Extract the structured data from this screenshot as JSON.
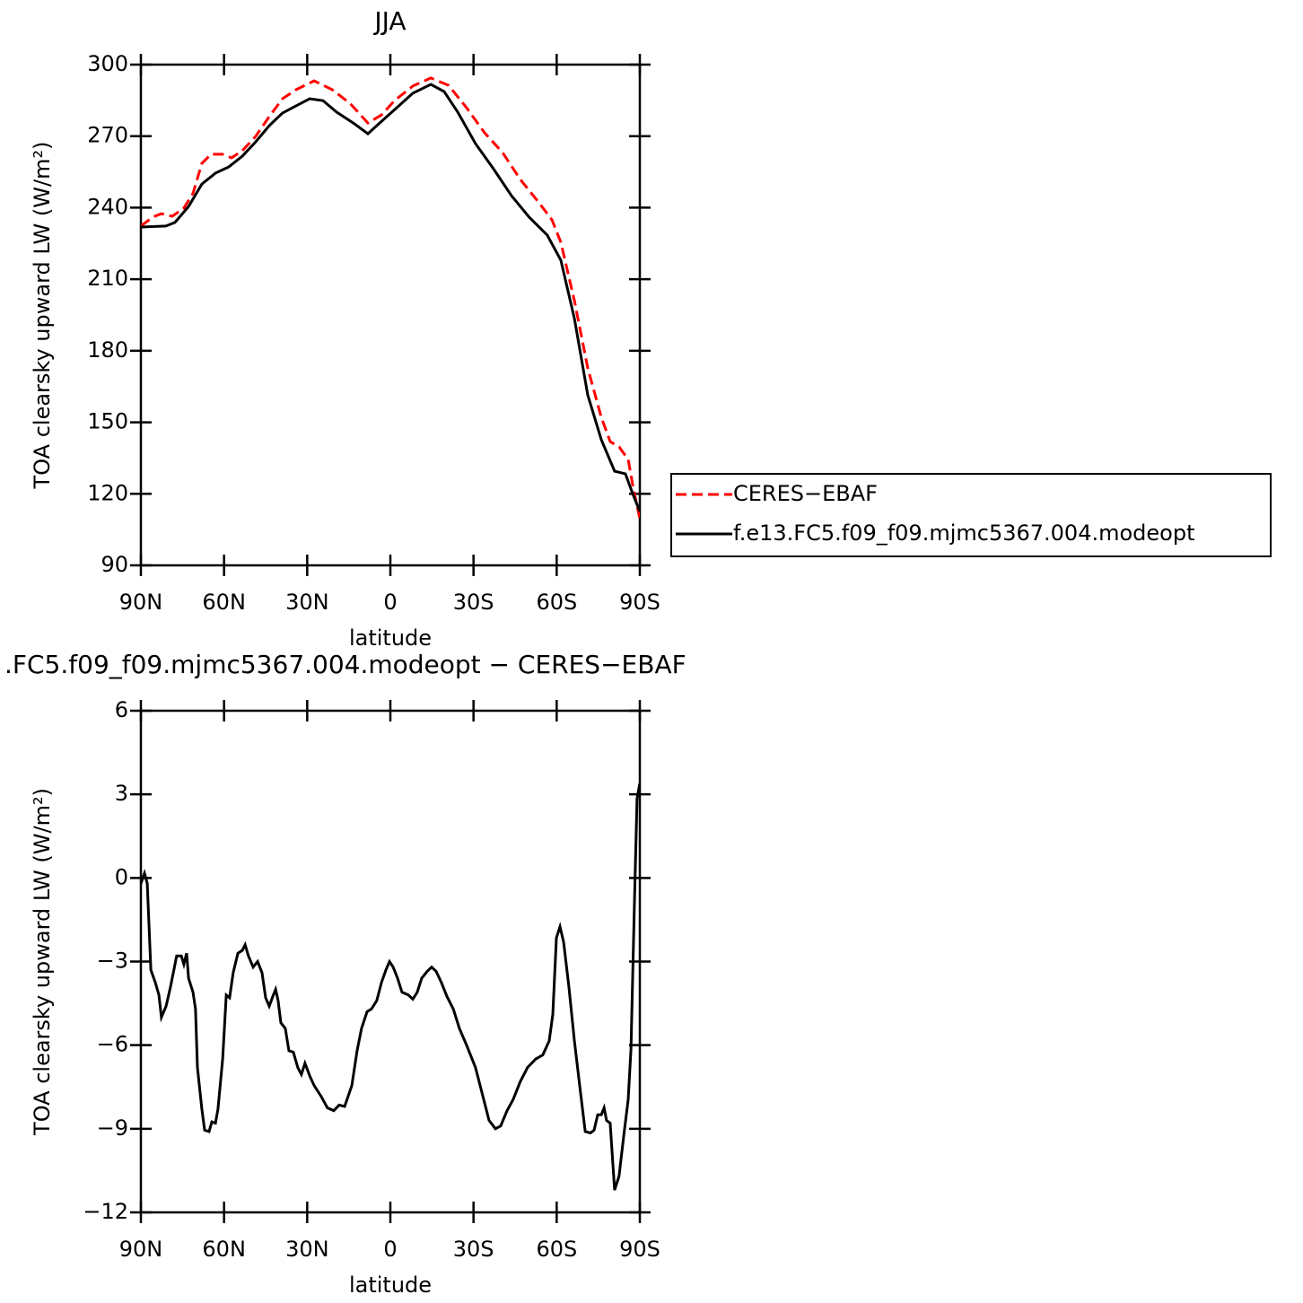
{
  "chart_data": [
    {
      "type": "line",
      "title": "JJA",
      "xlabel": "latitude",
      "ylabel": "TOA clearsky upward LW (W/m²)",
      "xlim": [
        90,
        -90
      ],
      "ylim": [
        90,
        300
      ],
      "xticks": [
        {
          "value": 90,
          "label": "90N"
        },
        {
          "value": 60,
          "label": "60N"
        },
        {
          "value": 30,
          "label": "30N"
        },
        0,
        {
          "value": -30,
          "label": "30S"
        },
        {
          "value": -60,
          "label": "60S"
        },
        {
          "value": -90,
          "label": "90S"
        }
      ],
      "yticks": [
        90,
        120,
        150,
        180,
        210,
        240,
        270,
        300
      ],
      "legend": "right",
      "series": [
        {
          "name": "CERES−EBAF",
          "color": "#ff0000",
          "dash": "dashed",
          "x": [
            90,
            85.8,
            82.6,
            78.7,
            74.5,
            71.2,
            68,
            64.7,
            60.5,
            57.3,
            53.4,
            48.6,
            43.7,
            38.9,
            34,
            27.5,
            21,
            14.6,
            8.1,
            3.2,
            -1.6,
            -8.1,
            -14.6,
            -21,
            -27.5,
            -34,
            -40.5,
            -46.9,
            -53.4,
            -58.3,
            -61.5,
            -66.4,
            -71.2,
            -76.1,
            -79.3,
            -82.5,
            -85.8,
            -87.7,
            -90
          ],
          "values": [
            232.3,
            236,
            237.5,
            236.4,
            239.8,
            246,
            258.6,
            262.4,
            262.4,
            260.9,
            263.9,
            269.9,
            278.2,
            285.7,
            289.5,
            293.2,
            289.5,
            283.8,
            275.5,
            278.9,
            285,
            291,
            294.4,
            291.3,
            281.9,
            271.4,
            263.1,
            251.8,
            242.4,
            234.9,
            225.5,
            201,
            172.8,
            152.1,
            141.9,
            139.7,
            134.4,
            122,
            109.6
          ]
        },
        {
          "name": "f.e13.FC5.f09_f09.mjmc5367.004.modeopt",
          "color": "#000000",
          "dash": "solid",
          "x": [
            90,
            81,
            77.7,
            72.8,
            68,
            63.1,
            58.3,
            53.4,
            48.6,
            43.7,
            38.9,
            34,
            29.1,
            24.3,
            19.4,
            13,
            8.1,
            4.9,
            -1.6,
            -8.1,
            -14.6,
            -19.4,
            -24.3,
            -30.7,
            -37.2,
            -43.7,
            -50.1,
            -56.6,
            -61.5,
            -66.4,
            -71.2,
            -76.1,
            -80.9,
            -84.8,
            -87.4,
            -90
          ],
          "values": [
            231.9,
            232.3,
            233.8,
            240.5,
            249.9,
            254.5,
            257.1,
            261.6,
            267.6,
            274.4,
            279.7,
            282.7,
            285.7,
            284.9,
            280.1,
            275.2,
            271,
            274.4,
            281.2,
            288,
            291.7,
            288.7,
            280.1,
            266.9,
            256.3,
            245,
            236,
            228.5,
            218,
            193.5,
            161.5,
            142.7,
            129.5,
            128.4,
            120.1,
            112.6
          ]
        }
      ]
    },
    {
      "type": "line",
      "title": ".FC5.f09_f09.mjmc5367.004.modeopt − CERES−EBAF",
      "xlabel": "latitude",
      "ylabel": "TOA clearsky upward LW (W/m²)",
      "xlim": [
        90,
        -90
      ],
      "ylim": [
        -12,
        6
      ],
      "xticks": [
        {
          "value": 90,
          "label": "90N"
        },
        {
          "value": 60,
          "label": "60N"
        },
        {
          "value": 30,
          "label": "30N"
        },
        0,
        {
          "value": -30,
          "label": "30S"
        },
        {
          "value": -60,
          "label": "60S"
        },
        {
          "value": -90,
          "label": "90S"
        }
      ],
      "yticks": [
        {
          "value": -12,
          "label": "−12"
        },
        {
          "value": -9,
          "label": "−9"
        },
        {
          "value": -6,
          "label": "−6"
        },
        {
          "value": -3,
          "label": "−3"
        },
        0,
        3,
        6
      ],
      "series": [
        {
          "color": "#000000",
          "dash": "solid",
          "x": [
            90,
            88.7,
            87.7,
            86.4,
            84.8,
            83.5,
            82.6,
            80.9,
            79.3,
            77.1,
            75.4,
            74.5,
            73.5,
            72.8,
            71.2,
            70.3,
            69.6,
            68,
            67,
            65.4,
            64.4,
            63.1,
            62.2,
            60.5,
            59.2,
            58,
            56.7,
            55,
            53.4,
            52.4,
            51.2,
            49.5,
            47.9,
            46.3,
            45,
            43.7,
            42.4,
            41.4,
            40.5,
            39.5,
            37.9,
            36.6,
            35,
            33.4,
            32.1,
            30.8,
            29.1,
            27.5,
            24.9,
            22.7,
            20.4,
            18.5,
            16.5,
            13.9,
            12,
            10.4,
            8.4,
            6.8,
            4.9,
            3.2,
            1.6,
            0.3,
            -1,
            -2.6,
            -4.2,
            -6.5,
            -8.1,
            -9.7,
            -11.3,
            -13.3,
            -14.9,
            -16.5,
            -18.4,
            -20.4,
            -22.7,
            -24.9,
            -27.5,
            -30.7,
            -33.3,
            -35.6,
            -37.9,
            -39.8,
            -42.1,
            -44.3,
            -46.9,
            -49.5,
            -52.4,
            -55,
            -57.3,
            -58.6,
            -59.9,
            -61.2,
            -62.5,
            -64.4,
            -66.4,
            -68.3,
            -70.3,
            -72.2,
            -73.5,
            -74.8,
            -76.1,
            -77.1,
            -78,
            -79.3,
            -80.9,
            -82.5,
            -84.2,
            -85.8,
            -86.8,
            -88.1,
            -89,
            -90
          ],
          "values": [
            -0.2,
            0.17,
            -0.2,
            -3.3,
            -3.75,
            -4.2,
            -5,
            -4.6,
            -3.9,
            -2.8,
            -2.8,
            -3.1,
            -2.7,
            -3.6,
            -4.1,
            -4.7,
            -6.8,
            -8.3,
            -9.05,
            -9.1,
            -8.75,
            -8.8,
            -8.3,
            -6.5,
            -4.2,
            -4.3,
            -3.4,
            -2.7,
            -2.6,
            -2.4,
            -2.8,
            -3.2,
            -3,
            -3.4,
            -4.3,
            -4.6,
            -4.25,
            -4,
            -4.4,
            -5.2,
            -5.4,
            -6.2,
            -6.25,
            -6.8,
            -7.05,
            -6.65,
            -7.1,
            -7.45,
            -7.85,
            -8.25,
            -8.35,
            -8.15,
            -8.2,
            -7.45,
            -6.2,
            -5.4,
            -4.8,
            -4.7,
            -4.4,
            -3.75,
            -3.3,
            -3,
            -3.2,
            -3.6,
            -4.1,
            -4.2,
            -4.35,
            -4.1,
            -3.6,
            -3.35,
            -3.2,
            -3.35,
            -3.75,
            -4.25,
            -4.7,
            -5.4,
            -6,
            -6.8,
            -7.8,
            -8.7,
            -9,
            -8.9,
            -8.35,
            -7.95,
            -7.3,
            -6.8,
            -6.5,
            -6.35,
            -5.85,
            -4.9,
            -2.15,
            -1.75,
            -2.3,
            -3.9,
            -5.85,
            -7.45,
            -9.1,
            -9.15,
            -9.05,
            -8.5,
            -8.5,
            -8.25,
            -8.7,
            -8.8,
            -11.2,
            -10.7,
            -9.25,
            -7.95,
            -6.15,
            -0.7,
            2.85,
            3.4
          ]
        }
      ]
    }
  ]
}
